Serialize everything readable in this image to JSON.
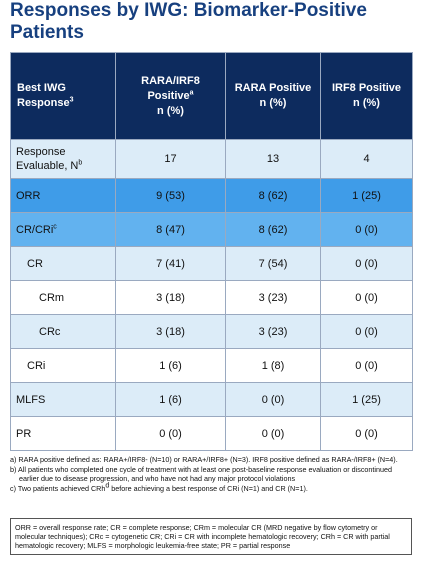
{
  "header": {
    "title": "Responses by IWG: Biomarker-Positive Patients"
  },
  "table": {
    "columns": [
      {
        "text": "Best IWG Response",
        "sup": "3"
      },
      {
        "text": "RARA/IRF8 Positive",
        "sup": "a",
        "sub": "n (%)"
      },
      {
        "text": "RARA Positive",
        "sub": "n (%)"
      },
      {
        "text": "IRF8 Positive",
        "sub": "n (%)"
      }
    ],
    "rows": [
      {
        "label": "Response Evaluable, N",
        "sup": "b",
        "cells": [
          "17",
          "13",
          "4"
        ]
      },
      {
        "label": "ORR",
        "cells": [
          "9 (53)",
          "8 (62)",
          "1 (25)"
        ]
      },
      {
        "label": "CR/CRi",
        "sup": "c",
        "cells": [
          "8 (47)",
          "8 (62)",
          "0 (0)"
        ]
      },
      {
        "label": "CR",
        "cells": [
          "7 (41)",
          "7 (54)",
          "0 (0)"
        ]
      },
      {
        "label": "CRm",
        "cells": [
          "3 (18)",
          "3 (23)",
          "0 (0)"
        ]
      },
      {
        "label": "CRc",
        "cells": [
          "3 (18)",
          "3 (23)",
          "0 (0)"
        ]
      },
      {
        "label": "CRi",
        "cells": [
          "1 (6)",
          "1 (8)",
          "0 (0)"
        ]
      },
      {
        "label": "MLFS",
        "cells": [
          "1 (6)",
          "0 (0)",
          "1 (25)"
        ]
      },
      {
        "label": "PR",
        "cells": [
          "0 (0)",
          "0 (0)",
          "0 (0)"
        ]
      }
    ]
  },
  "footnotes": [
    {
      "marker": "a)",
      "parts": [
        "RARA positive defined as: RARA+/IRF8- (N=10) or RARA+/IRF8+ (N=3).   IRF8 positive defined as RARA-/IRF8+ (N=4)."
      ]
    },
    {
      "marker": "b)",
      "parts": [
        "All patients who completed one cycle of treatment with at least one post-baseline response evaluation or discontinued earlier due to disease progression, and who have not had any major protocol violations"
      ]
    },
    {
      "marker": "c)",
      "parts": [
        "Two patients achieved CRh",
        "d",
        " before achieving a best response of CRi (N=1) and CR (N=1)."
      ]
    }
  ],
  "abbreviations": "ORR = overall response rate; CR = complete response; CRm = molecular CR (MRD negative by flow cytometry or molecular techniques); CRc = cytogenetic CR; CRi = CR with incomplete hematologic recovery; CRh = CR with partial hematologic recovery; MLFS = morphologic leukemia-free state; PR = partial response"
}
